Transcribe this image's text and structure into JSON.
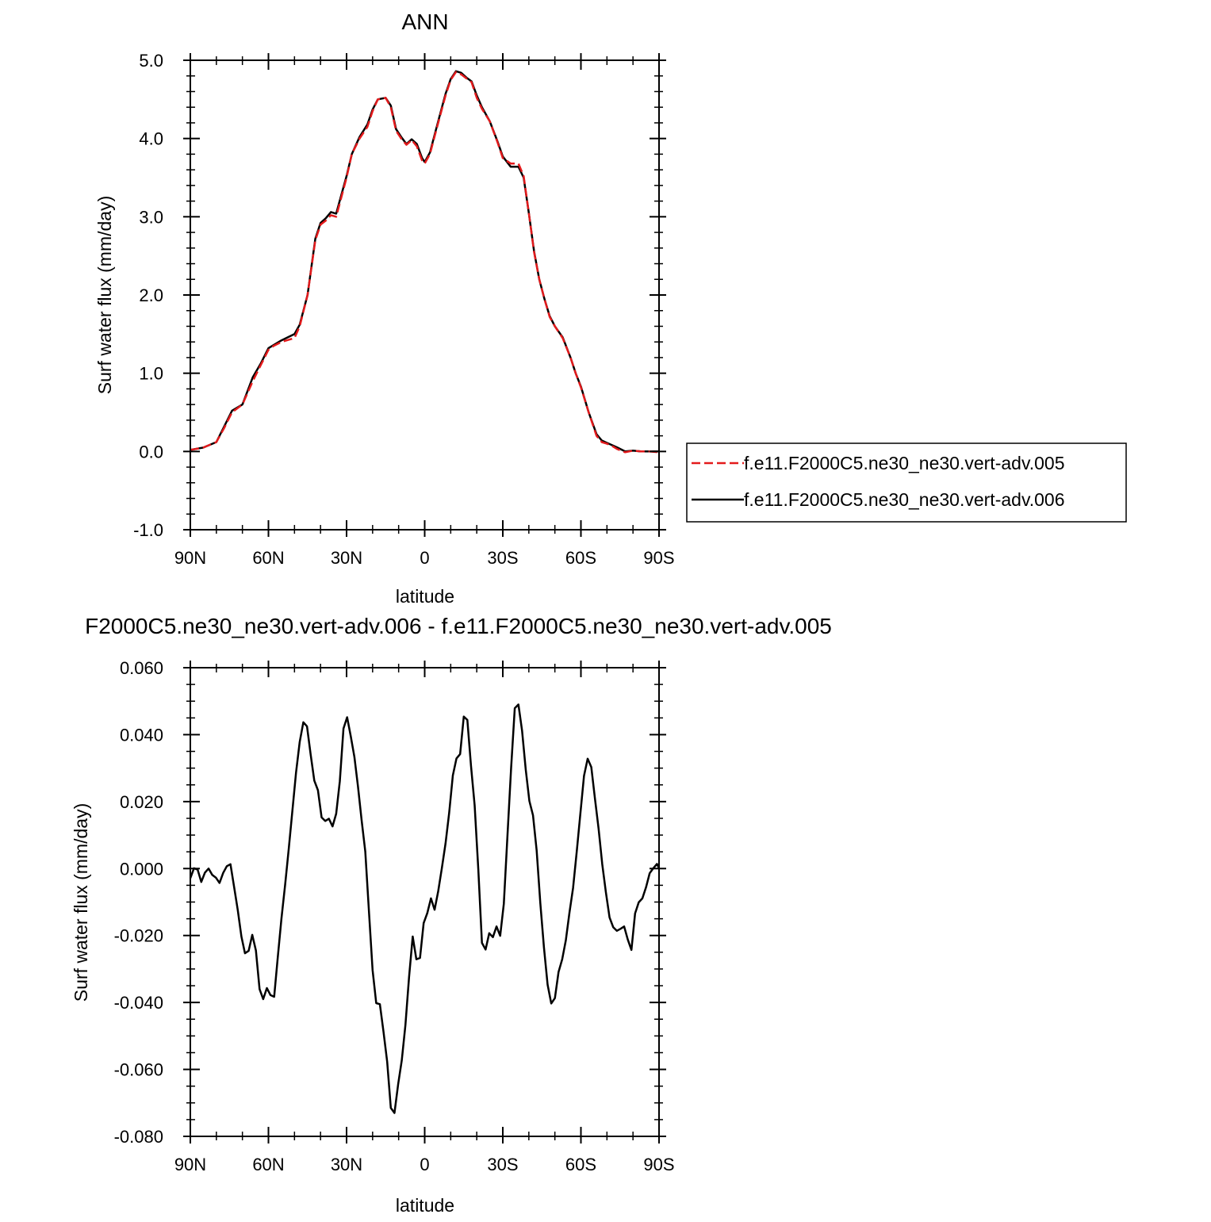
{
  "chart_data": [
    {
      "type": "line",
      "title": "ANN",
      "xlabel": "latitude",
      "ylabel": "Surf water flux (mm/day)",
      "xlim": [
        90,
        -90
      ],
      "ylim": [
        -1.0,
        5.0
      ],
      "x_ticks": [
        90,
        60,
        30,
        0,
        -30,
        -60,
        -90
      ],
      "x_tick_labels": [
        "90N",
        "60N",
        "30N",
        "0",
        "30S",
        "60S",
        "90S"
      ],
      "y_ticks": [
        -1.0,
        0.0,
        1.0,
        2.0,
        3.0,
        4.0,
        5.0
      ],
      "y_tick_labels": [
        "-1.0",
        "0.0",
        "1.0",
        "2.0",
        "3.0",
        "4.0",
        "5.0"
      ],
      "legend_position": "right",
      "series": [
        {
          "name": "f.e11.F2000C5.ne30_ne30.vert-adv.005",
          "color": "#e31a1c",
          "dash": "dashed",
          "x": [
            90,
            85,
            80,
            77,
            74,
            70,
            66,
            63,
            60,
            58,
            55,
            50,
            48,
            45,
            42,
            40,
            38,
            36,
            34,
            30,
            28,
            25,
            22,
            20,
            18,
            15,
            13,
            11,
            9,
            7,
            5,
            3,
            1,
            0,
            -2,
            -4,
            -6,
            -8,
            -10,
            -12,
            -14,
            -16,
            -18,
            -20,
            -22,
            -25,
            -28,
            -30,
            -33,
            -36,
            -38,
            -40,
            -42,
            -44,
            -46,
            -48,
            -50,
            -53,
            -56,
            -58,
            -60,
            -63,
            -66,
            -68,
            -70,
            -72,
            -74,
            -77,
            -80,
            -83,
            -86,
            -90
          ],
          "y": [
            0.02,
            0.05,
            0.12,
            0.3,
            0.5,
            0.6,
            0.9,
            1.1,
            1.3,
            1.35,
            1.4,
            1.45,
            1.6,
            2.0,
            2.7,
            2.9,
            2.95,
            3.02,
            3.0,
            3.5,
            3.8,
            4.0,
            4.15,
            4.35,
            4.5,
            4.52,
            4.4,
            4.1,
            4.0,
            3.92,
            3.98,
            3.9,
            3.72,
            3.68,
            3.8,
            4.05,
            4.3,
            4.55,
            4.75,
            4.85,
            4.82,
            4.77,
            4.72,
            4.52,
            4.38,
            4.22,
            3.95,
            3.75,
            3.68,
            3.68,
            3.52,
            3.05,
            2.55,
            2.2,
            1.95,
            1.72,
            1.6,
            1.45,
            1.2,
            1.0,
            0.82,
            0.5,
            0.2,
            0.12,
            0.1,
            0.07,
            0.03,
            -0.01,
            0.01,
            0.0,
            0.0,
            -0.01
          ]
        },
        {
          "name": "f.e11.F2000C5.ne30_ne30.vert-adv.006",
          "color": "#000000",
          "dash": "solid",
          "x": [
            90,
            85,
            80,
            77,
            74,
            70,
            66,
            63,
            60,
            58,
            55,
            50,
            48,
            45,
            42,
            40,
            38,
            36,
            34,
            30,
            28,
            25,
            22,
            20,
            18,
            15,
            13,
            11,
            9,
            7,
            5,
            3,
            1,
            0,
            -2,
            -4,
            -6,
            -8,
            -10,
            -12,
            -14,
            -16,
            -18,
            -20,
            -22,
            -25,
            -28,
            -30,
            -33,
            -36,
            -38,
            -40,
            -42,
            -44,
            -46,
            -48,
            -50,
            -53,
            -56,
            -58,
            -60,
            -63,
            -66,
            -68,
            -70,
            -72,
            -74,
            -77,
            -80,
            -83,
            -86,
            -90
          ],
          "y": [
            0.02,
            0.05,
            0.12,
            0.32,
            0.52,
            0.6,
            0.95,
            1.12,
            1.32,
            1.36,
            1.42,
            1.5,
            1.62,
            2.0,
            2.72,
            2.92,
            2.98,
            3.06,
            3.04,
            3.52,
            3.8,
            4.02,
            4.18,
            4.37,
            4.5,
            4.52,
            4.42,
            4.12,
            4.02,
            3.93,
            3.99,
            3.93,
            3.75,
            3.7,
            3.82,
            4.07,
            4.32,
            4.57,
            4.76,
            4.86,
            4.84,
            4.78,
            4.73,
            4.55,
            4.4,
            4.22,
            3.96,
            3.77,
            3.64,
            3.64,
            3.5,
            3.05,
            2.56,
            2.2,
            1.95,
            1.73,
            1.6,
            1.46,
            1.2,
            1.0,
            0.83,
            0.5,
            0.22,
            0.14,
            0.11,
            0.08,
            0.05,
            0.0,
            0.01,
            0.0,
            0.0,
            0.0
          ]
        }
      ]
    },
    {
      "type": "line",
      "title": "F2000C5.ne30_ne30.vert-adv.006 - f.e11.F2000C5.ne30_ne30.vert-adv.005",
      "xlabel": "latitude",
      "ylabel": "Surf water flux (mm/day)",
      "xlim": [
        90,
        -90
      ],
      "ylim": [
        -0.08,
        0.06
      ],
      "x_ticks": [
        90,
        60,
        30,
        0,
        -30,
        -60,
        -90
      ],
      "x_tick_labels": [
        "90N",
        "60N",
        "30N",
        "0",
        "30S",
        "60S",
        "90S"
      ],
      "y_ticks": [
        -0.08,
        -0.06,
        -0.04,
        -0.02,
        0.0,
        0.02,
        0.04,
        0.06
      ],
      "y_tick_labels": [
        "-0.080",
        "-0.060",
        "-0.040",
        "-0.020",
        "0.000",
        "0.020",
        "0.040",
        "0.060"
      ],
      "series": [
        {
          "name": "",
          "color": "#000000",
          "dash": "solid",
          "x": [
            90,
            88.6,
            87.2,
            85.8,
            84.4,
            83.0,
            81.6,
            80.2,
            78.8,
            77.4,
            76.0,
            74.6,
            73.2,
            71.8,
            70.4,
            69.0,
            67.6,
            66.2,
            64.8,
            63.4,
            62.0,
            60.6,
            59.2,
            57.8,
            56.4,
            55.0,
            53.6,
            52.2,
            50.8,
            49.4,
            48.0,
            46.6,
            45.2,
            43.8,
            42.4,
            41.0,
            39.6,
            38.2,
            36.8,
            35.4,
            34.0,
            32.6,
            31.2,
            29.8,
            28.4,
            27.0,
            25.6,
            24.2,
            22.8,
            21.4,
            20.0,
            18.6,
            17.2,
            15.8,
            14.4,
            13.0,
            11.6,
            10.2,
            8.8,
            7.4,
            6.0,
            4.6,
            3.2,
            1.8,
            0.4,
            -1.0,
            -2.4,
            -3.8,
            -5.2,
            -6.6,
            -8.0,
            -9.4,
            -10.8,
            -12.2,
            -13.6,
            -15.0,
            -16.4,
            -17.8,
            -19.2,
            -20.6,
            -22.0,
            -23.4,
            -24.8,
            -26.2,
            -27.6,
            -29.0,
            -30.4,
            -31.8,
            -33.2,
            -34.6,
            -36.0,
            -37.4,
            -38.8,
            -40.2,
            -41.6,
            -43.0,
            -44.4,
            -45.8,
            -47.2,
            -48.6,
            -50.0,
            -51.4,
            -52.8,
            -54.2,
            -55.6,
            -57.0,
            -58.4,
            -59.8,
            -61.2,
            -62.6,
            -64.0,
            -65.4,
            -66.8,
            -68.2,
            -69.6,
            -71.0,
            -72.4,
            -73.8,
            -75.2,
            -76.6,
            -78.0,
            -79.4,
            -80.8,
            -82.2,
            -83.6,
            -85.0,
            -86.4,
            -87.8,
            -89.2,
            -90
          ],
          "y": [
            -0.0029,
            0.0001,
            -0.0003,
            -0.004,
            -0.0012,
            0.0,
            -0.0019,
            -0.0027,
            -0.0043,
            -0.0013,
            0.0007,
            0.0013,
            -0.0055,
            -0.0124,
            -0.0203,
            -0.0253,
            -0.0246,
            -0.0198,
            -0.0245,
            -0.036,
            -0.039,
            -0.0357,
            -0.0378,
            -0.0383,
            -0.0264,
            -0.0149,
            -0.0049,
            0.0059,
            0.0173,
            0.0287,
            0.0378,
            0.0437,
            0.0425,
            0.0341,
            0.0263,
            0.0234,
            0.0153,
            0.0142,
            0.0149,
            0.0126,
            0.0164,
            0.0261,
            0.0418,
            0.0452,
            0.0395,
            0.0333,
            0.0245,
            0.0144,
            0.0051,
            -0.0127,
            -0.0303,
            -0.0402,
            -0.0405,
            -0.0488,
            -0.0577,
            -0.0715,
            -0.073,
            -0.0645,
            -0.0573,
            -0.0468,
            -0.0324,
            -0.0203,
            -0.0271,
            -0.0267,
            -0.0163,
            -0.0133,
            -0.0089,
            -0.0123,
            -0.0067,
            0.0002,
            0.0075,
            0.0167,
            0.0278,
            0.0329,
            0.0342,
            0.0454,
            0.0444,
            0.0307,
            0.0189,
            -0.0002,
            -0.0222,
            -0.0242,
            -0.0193,
            -0.0205,
            -0.0173,
            -0.0201,
            -0.0105,
            0.0099,
            0.0301,
            0.0479,
            0.049,
            0.0412,
            0.0296,
            0.0202,
            0.0159,
            0.0054,
            -0.0103,
            -0.0236,
            -0.0347,
            -0.0403,
            -0.0387,
            -0.0309,
            -0.0271,
            -0.0214,
            -0.0131,
            -0.0058,
            0.005,
            0.0164,
            0.0277,
            0.0328,
            0.0303,
            0.0209,
            0.0119,
            0.0013,
            -0.0071,
            -0.0146,
            -0.0175,
            -0.0186,
            -0.018,
            -0.0173,
            -0.0212,
            -0.0243,
            -0.0134,
            -0.0101,
            -0.0089,
            -0.0056,
            -0.0014,
            0.0001,
            0.0014,
            0.0001
          ]
        }
      ]
    }
  ]
}
